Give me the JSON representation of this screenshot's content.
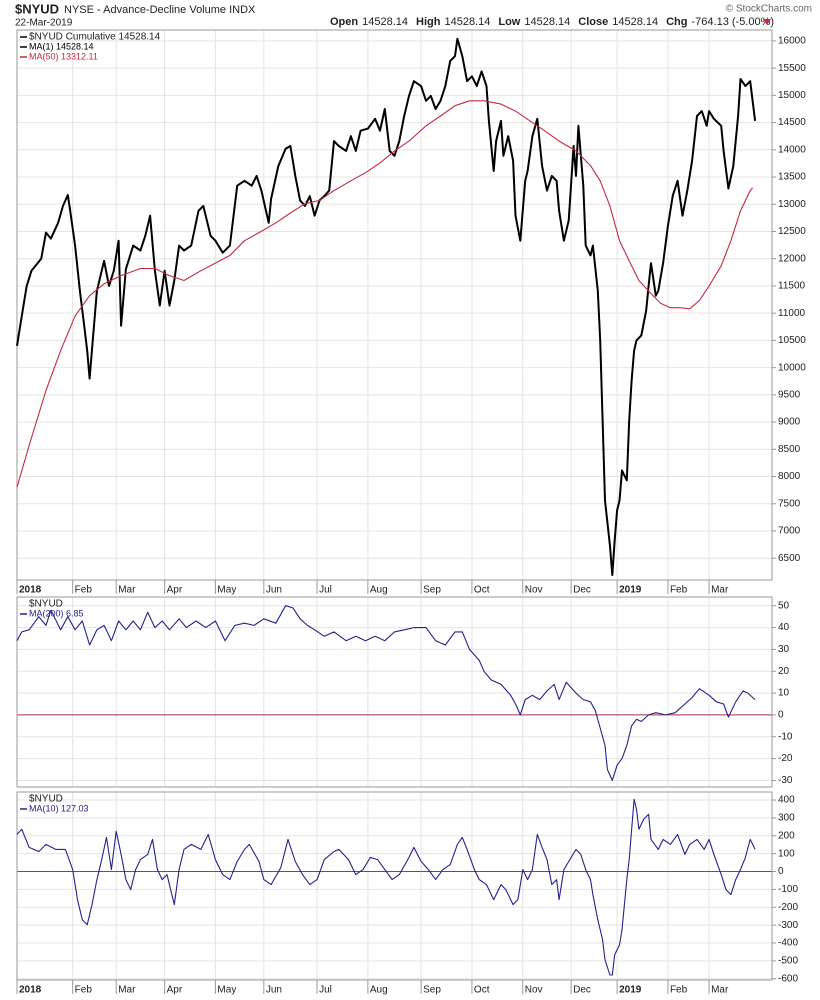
{
  "header": {
    "symbol": "$NYUD",
    "description": "NYSE - Advance-Decline Volume INDX",
    "date": "22-Mar-2019",
    "quote": [
      {
        "label": "Open",
        "value": "14528.14"
      },
      {
        "label": "High",
        "value": "14528.14"
      },
      {
        "label": "Low",
        "value": "14528.14"
      },
      {
        "label": "Close",
        "value": "14528.14"
      },
      {
        "label": "Chg",
        "value": "-764.13 (-5.00%)"
      }
    ],
    "copyright": "© StockCharts.com"
  },
  "chart_data": [
    {
      "type": "line",
      "legend_title": "$NYUD Cumulative 14528.14",
      "grid": true,
      "xlim": [
        0,
        312
      ],
      "ylim": [
        6100,
        16200
      ],
      "xticks": [
        {
          "value": 0,
          "label": "2018"
        },
        {
          "value": 23,
          "label": "Feb"
        },
        {
          "value": 41,
          "label": "Mar"
        },
        {
          "value": 61,
          "label": "Apr"
        },
        {
          "value": 82,
          "label": "May"
        },
        {
          "value": 102,
          "label": "Jun"
        },
        {
          "value": 124,
          "label": "Jul"
        },
        {
          "value": 145,
          "label": "Aug"
        },
        {
          "value": 167,
          "label": "Sep"
        },
        {
          "value": 188,
          "label": "Oct"
        },
        {
          "value": 209,
          "label": "Nov"
        },
        {
          "value": 229,
          "label": "Dec"
        },
        {
          "value": 248,
          "label": "2019"
        },
        {
          "value": 269,
          "label": "Feb"
        },
        {
          "value": 286,
          "label": "Mar"
        }
      ],
      "yticks": [
        6500,
        7000,
        7500,
        8000,
        8500,
        9000,
        9500,
        10000,
        10500,
        11000,
        11500,
        12000,
        12500,
        13000,
        13500,
        14000,
        14500,
        15000,
        15500,
        16000
      ],
      "series": [
        {
          "name": "MA(1) 14528.14",
          "color": "#000000",
          "x": [
            0,
            2,
            4,
            6,
            10,
            12,
            14,
            17,
            19,
            21,
            22,
            24,
            26,
            28,
            29,
            30,
            32,
            33,
            36,
            38,
            40,
            42,
            43,
            45,
            48,
            51,
            53,
            55,
            57,
            59,
            61,
            63,
            65,
            67,
            69,
            72,
            75,
            77,
            80,
            82,
            85,
            88,
            91,
            94,
            97,
            99,
            101,
            104,
            105,
            108,
            111,
            113,
            115,
            117,
            119,
            121,
            123,
            125,
            127,
            129,
            131,
            133,
            136,
            138,
            140,
            142,
            145,
            148,
            150,
            152,
            154,
            156,
            158,
            160,
            162,
            164,
            167,
            169,
            171,
            173,
            175,
            177,
            179,
            181,
            182,
            184,
            186,
            188,
            190,
            192,
            194,
            195,
            197,
            198,
            200,
            201,
            203,
            205,
            206,
            208,
            210,
            211,
            213,
            215,
            217,
            219,
            221,
            223,
            224,
            226,
            228,
            230,
            231,
            232,
            234,
            235,
            237,
            238,
            240,
            241,
            242,
            243,
            245,
            246,
            247,
            248,
            249,
            250,
            252,
            253,
            254,
            255,
            256,
            258,
            260,
            261,
            262,
            264,
            265,
            267,
            269,
            271,
            273,
            275,
            277,
            279,
            281,
            283,
            285,
            286,
            288,
            291,
            292,
            294,
            296,
            298,
            299,
            301,
            303,
            304,
            305
          ],
          "values": [
            10400,
            10950,
            11500,
            11780,
            12000,
            12480,
            12370,
            12660,
            12970,
            13170,
            12880,
            12240,
            11410,
            10680,
            10310,
            9800,
            10860,
            11410,
            11960,
            11500,
            11780,
            12330,
            10770,
            11810,
            12240,
            12150,
            12420,
            12790,
            11780,
            11140,
            11780,
            11140,
            11600,
            12240,
            12150,
            12240,
            12880,
            12970,
            12420,
            12330,
            12110,
            12240,
            13340,
            13430,
            13340,
            13520,
            13250,
            12660,
            13100,
            13700,
            14020,
            14070,
            13520,
            13070,
            12970,
            13150,
            12790,
            13070,
            13150,
            13250,
            14160,
            14070,
            13980,
            14250,
            13980,
            14350,
            14390,
            14570,
            14350,
            14750,
            13980,
            13890,
            14160,
            14620,
            14990,
            15260,
            15170,
            14900,
            14990,
            14750,
            14900,
            15170,
            15630,
            15720,
            16040,
            15720,
            15260,
            15350,
            15170,
            15440,
            15170,
            14530,
            13610,
            14160,
            14530,
            13890,
            14250,
            13800,
            12790,
            12330,
            13430,
            13610,
            14250,
            14570,
            13700,
            13250,
            13520,
            13430,
            12880,
            12330,
            12700,
            14070,
            13520,
            14440,
            13340,
            12240,
            12060,
            12240,
            11410,
            10500,
            9030,
            7560,
            6740,
            6190,
            6830,
            7380,
            7560,
            8110,
            7930,
            9030,
            9760,
            10310,
            10500,
            10590,
            11050,
            11500,
            11920,
            11320,
            11410,
            11920,
            12600,
            13160,
            13430,
            12790,
            13250,
            13800,
            14620,
            14710,
            14440,
            14710,
            14570,
            14440,
            13980,
            13290,
            13700,
            14620,
            15300,
            15170,
            15260,
            14900,
            14530
          ]
        },
        {
          "name": "MA(50) 13312.11",
          "color": "#c8283c",
          "x": [
            0,
            5,
            12,
            18,
            24,
            30,
            36,
            43,
            51,
            57,
            63,
            69,
            76,
            82,
            88,
            94,
            100,
            107,
            113,
            119,
            125,
            131,
            138,
            144,
            150,
            156,
            162,
            169,
            175,
            181,
            187,
            193,
            200,
            206,
            212,
            218,
            224,
            231,
            237,
            241,
            245,
            249,
            254,
            257,
            262,
            266,
            270,
            274,
            278,
            282,
            286,
            291,
            295,
            299,
            303,
            304
          ],
          "values": [
            7800,
            8570,
            9580,
            10310,
            10950,
            11320,
            11540,
            11690,
            11820,
            11820,
            11690,
            11600,
            11780,
            11920,
            12060,
            12330,
            12480,
            12660,
            12840,
            13010,
            13070,
            13250,
            13430,
            13580,
            13760,
            13980,
            14160,
            14440,
            14620,
            14810,
            14900,
            14900,
            14840,
            14710,
            14530,
            14350,
            14160,
            13980,
            13710,
            13430,
            12970,
            12330,
            11870,
            11600,
            11360,
            11180,
            11100,
            11100,
            11080,
            11230,
            11500,
            11870,
            12330,
            12880,
            13250,
            13300
          ]
        }
      ]
    },
    {
      "type": "line",
      "legend_title": "$NYUD",
      "grid": true,
      "xlim": [
        0,
        312
      ],
      "ylim": [
        -33,
        54
      ],
      "yticks": [
        -30,
        -20,
        -10,
        0,
        10,
        20,
        30,
        40,
        50
      ],
      "hline": {
        "value": 0,
        "color": "#b0304c"
      },
      "series": [
        {
          "name": "MA(200) 6.85",
          "color": "#23238c",
          "x": [
            0,
            2,
            5,
            9,
            12,
            14,
            18,
            21,
            24,
            27,
            30,
            33,
            36,
            39,
            42,
            45,
            48,
            51,
            54,
            57,
            60,
            63,
            67,
            70,
            74,
            78,
            82,
            86,
            90,
            94,
            98,
            102,
            107,
            111,
            114,
            117,
            120,
            123,
            127,
            131,
            136,
            140,
            144,
            148,
            152,
            156,
            160,
            164,
            169,
            173,
            177,
            181,
            184,
            187,
            191,
            193,
            196,
            200,
            204,
            206,
            208,
            210,
            213,
            216,
            219,
            222,
            224,
            227,
            231,
            234,
            237,
            239,
            241,
            243,
            244,
            246,
            248,
            250,
            252,
            254,
            256,
            258,
            261,
            264,
            268,
            272,
            276,
            279,
            282,
            286,
            289,
            292,
            294,
            297,
            300,
            302,
            305
          ],
          "values": [
            34,
            38,
            39,
            45,
            41,
            48,
            39,
            45,
            39,
            43,
            32,
            39,
            41,
            34,
            43,
            39,
            43,
            39,
            47,
            40,
            43,
            39,
            44,
            40,
            43,
            40,
            43,
            34,
            41,
            42,
            41,
            44,
            42,
            50,
            49,
            44,
            41,
            39,
            36,
            38,
            34,
            36,
            34,
            36,
            34,
            38,
            39,
            40,
            40,
            34,
            32,
            38,
            38,
            30,
            25,
            20,
            16,
            14,
            9,
            5,
            0,
            7,
            9,
            7,
            11,
            14,
            7,
            15,
            10,
            7,
            6,
            2,
            -6,
            -14,
            -25,
            -30,
            -23,
            -20,
            -14,
            -5,
            -2,
            -3,
            0,
            1,
            0,
            1,
            5,
            8,
            12,
            9,
            6,
            5,
            -1,
            6,
            11,
            10,
            7
          ]
        }
      ]
    },
    {
      "type": "line",
      "legend_title": "$NYUD",
      "grid": true,
      "xlim": [
        0,
        312
      ],
      "ylim": [
        -607,
        445
      ],
      "xticks": [
        {
          "value": 0,
          "label": "2018"
        },
        {
          "value": 23,
          "label": "Feb"
        },
        {
          "value": 41,
          "label": "Mar"
        },
        {
          "value": 61,
          "label": "Apr"
        },
        {
          "value": 82,
          "label": "May"
        },
        {
          "value": 102,
          "label": "Jun"
        },
        {
          "value": 124,
          "label": "Jul"
        },
        {
          "value": 145,
          "label": "Aug"
        },
        {
          "value": 167,
          "label": "Sep"
        },
        {
          "value": 188,
          "label": "Oct"
        },
        {
          "value": 209,
          "label": "Nov"
        },
        {
          "value": 229,
          "label": "Dec"
        },
        {
          "value": 248,
          "label": "2019"
        },
        {
          "value": 269,
          "label": "Feb"
        },
        {
          "value": 286,
          "label": "Mar"
        }
      ],
      "yticks": [
        -600,
        -500,
        -400,
        -300,
        -200,
        -100,
        0,
        100,
        200,
        300,
        400
      ],
      "hline": {
        "value": 0,
        "color": "#b0304c"
      },
      "series": [
        {
          "name": "MA(10) 127.03",
          "color": "#23238c",
          "x": [
            0,
            2,
            5,
            9,
            12,
            16,
            20,
            23,
            25,
            27,
            29,
            31,
            33,
            35,
            37,
            39,
            41,
            43,
            45,
            47,
            49,
            51,
            54,
            56,
            58,
            60,
            62,
            65,
            67,
            69,
            72,
            76,
            79,
            82,
            85,
            88,
            91,
            94,
            96,
            100,
            102,
            105,
            109,
            112,
            115,
            118,
            121,
            124,
            127,
            131,
            133,
            137,
            140,
            143,
            146,
            149,
            152,
            155,
            158,
            162,
            164,
            167,
            170,
            173,
            176,
            179,
            182,
            184,
            186,
            189,
            191,
            194,
            197,
            200,
            202,
            205,
            207,
            209,
            211,
            213,
            215,
            217,
            219,
            221,
            223,
            224,
            226,
            229,
            231,
            233,
            235,
            237,
            238,
            240,
            242,
            243,
            245,
            246,
            247,
            249,
            250,
            252,
            253,
            255,
            256,
            257,
            259,
            261,
            262,
            265,
            267,
            270,
            273,
            276,
            278,
            281,
            284,
            286,
            288,
            291,
            293,
            295,
            297,
            299,
            301,
            303,
            305
          ],
          "values": [
            208,
            236,
            135,
            112,
            152,
            124,
            124,
            11,
            -157,
            -270,
            -298,
            -185,
            -45,
            67,
            191,
            11,
            225,
            96,
            -45,
            -101,
            11,
            67,
            96,
            180,
            11,
            -45,
            -17,
            -185,
            11,
            124,
            152,
            124,
            208,
            67,
            -17,
            -45,
            56,
            124,
            152,
            56,
            -45,
            -73,
            22,
            180,
            56,
            -17,
            -73,
            -45,
            67,
            112,
            124,
            67,
            -17,
            11,
            79,
            67,
            11,
            -45,
            -17,
            79,
            135,
            56,
            11,
            -45,
            11,
            39,
            152,
            191,
            124,
            11,
            -45,
            -73,
            -157,
            -73,
            -101,
            -185,
            -157,
            11,
            -45,
            11,
            208,
            135,
            67,
            -73,
            -45,
            -157,
            11,
            79,
            124,
            96,
            11,
            -45,
            -129,
            -270,
            -382,
            -494,
            -579,
            -579,
            -466,
            -410,
            -326,
            -45,
            67,
            404,
            348,
            236,
            292,
            320,
            180,
            124,
            180,
            152,
            208,
            96,
            152,
            180,
            124,
            180,
            96,
            -17,
            -101,
            -129,
            -45,
            11,
            79,
            180,
            124
          ]
        }
      ]
    }
  ]
}
